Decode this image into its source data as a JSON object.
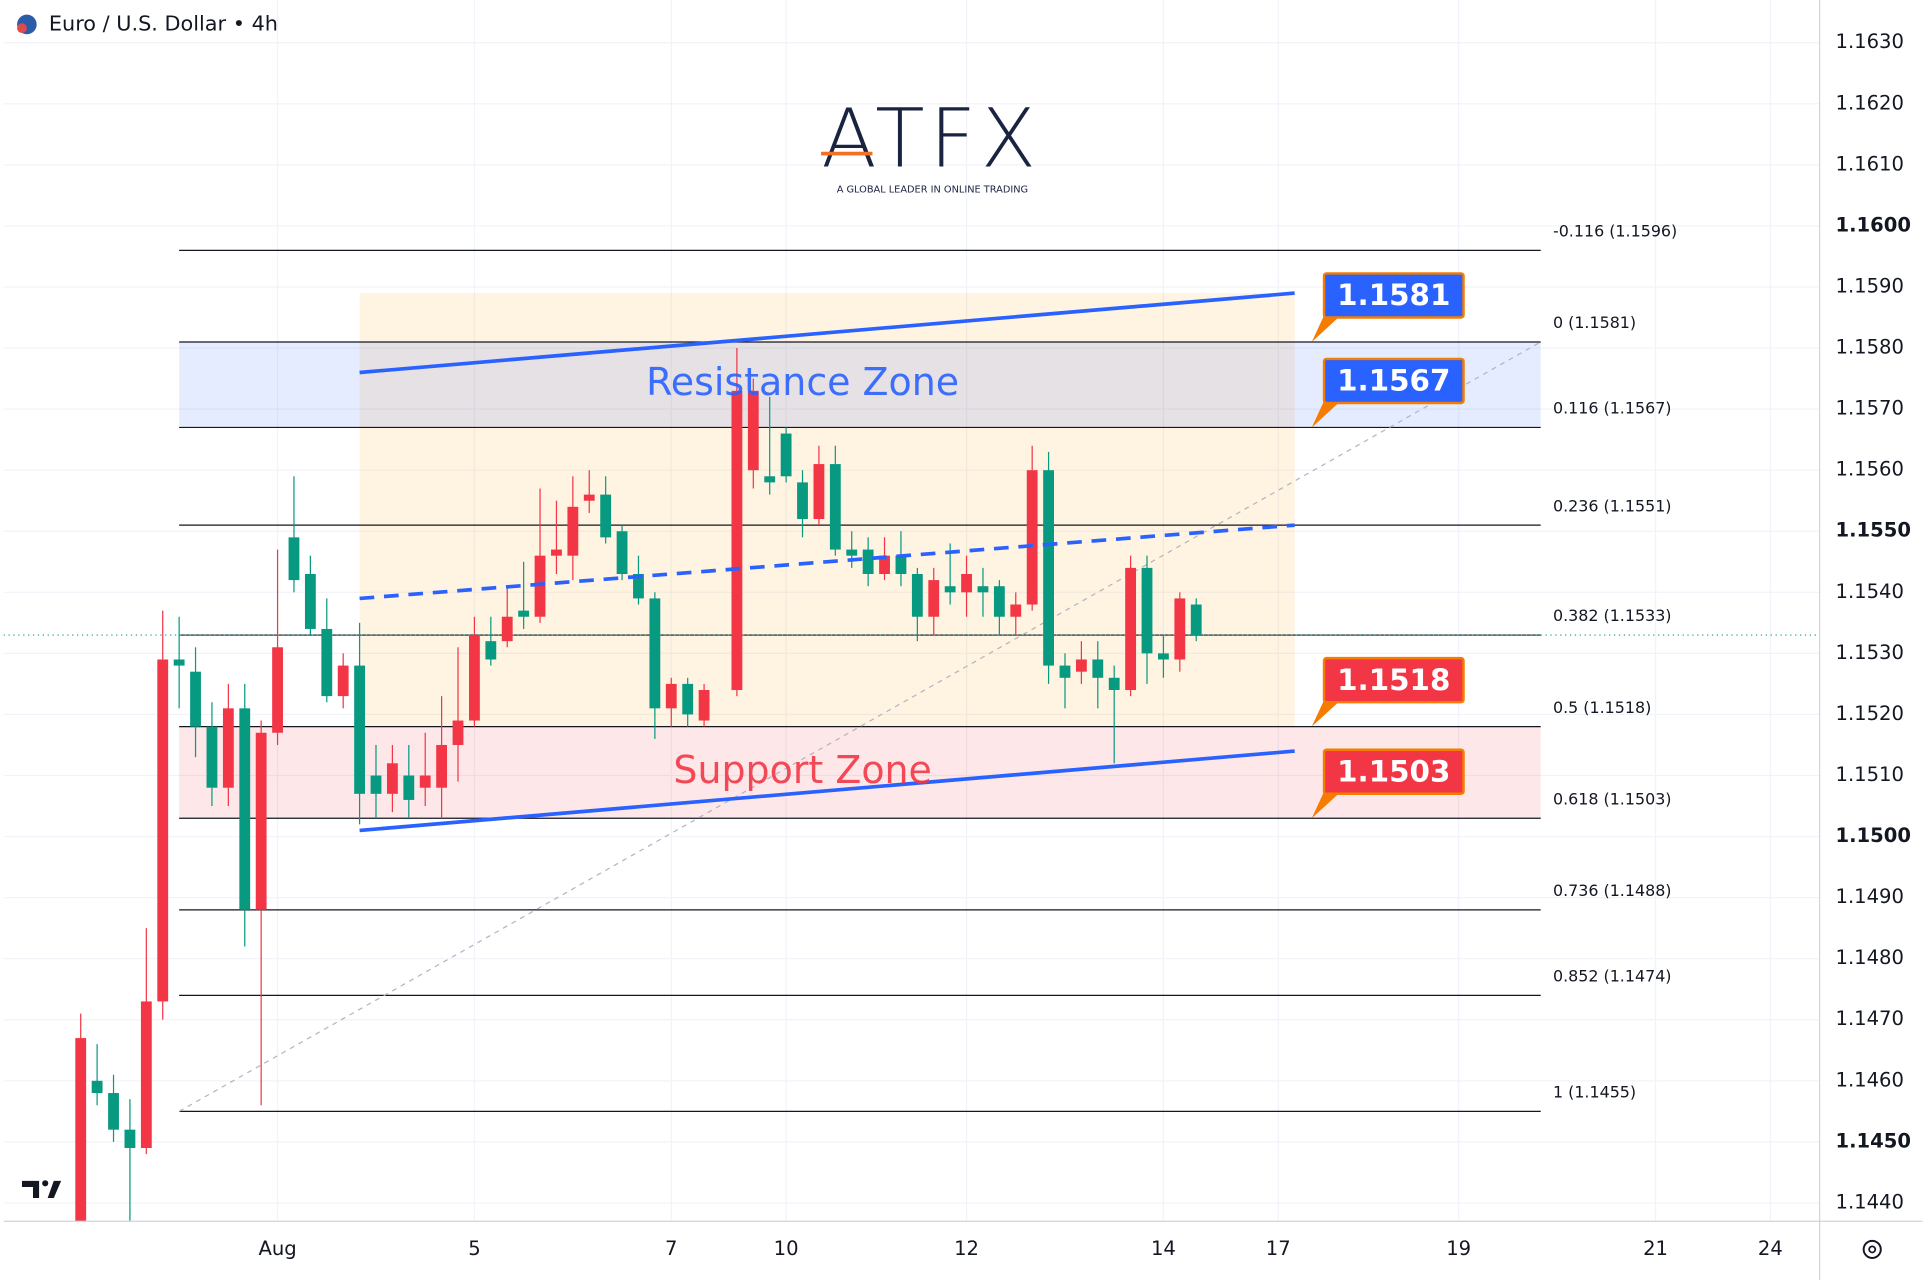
{
  "chart_data": {
    "type": "candlestick",
    "title": "Euro / U.S. Dollar • 4h",
    "logo": {
      "name": "ATFX",
      "tagline": "A GLOBAL LEADER IN ONLINE TRADING"
    },
    "up_color": "#f23645",
    "down_color": "#089981",
    "xlim": [
      -4.7,
      106
    ],
    "ylim": [
      1.1437,
      1.1637
    ],
    "grid": true,
    "xticks": [
      {
        "value": 12,
        "label": "Aug"
      },
      {
        "value": 24,
        "label": "5"
      },
      {
        "value": 36,
        "label": "7"
      },
      {
        "value": 43,
        "label": "10"
      },
      {
        "value": 54,
        "label": "12"
      },
      {
        "value": 66,
        "label": "14"
      },
      {
        "value": 73,
        "label": "17"
      },
      {
        "value": 84,
        "label": "19"
      },
      {
        "value": 96,
        "label": "21"
      },
      {
        "value": 103,
        "label": "24"
      }
    ],
    "yticks": [
      {
        "value": 1.144,
        "label": "1.1440"
      },
      {
        "value": 1.145,
        "label": "1.1450"
      },
      {
        "value": 1.146,
        "label": "1.1460"
      },
      {
        "value": 1.147,
        "label": "1.1470"
      },
      {
        "value": 1.148,
        "label": "1.1480"
      },
      {
        "value": 1.149,
        "label": "1.1490"
      },
      {
        "value": 1.15,
        "label": "1.1500"
      },
      {
        "value": 1.151,
        "label": "1.1510"
      },
      {
        "value": 1.152,
        "label": "1.1520"
      },
      {
        "value": 1.153,
        "label": "1.1530"
      },
      {
        "value": 1.154,
        "label": "1.1540"
      },
      {
        "value": 1.155,
        "label": "1.1550"
      },
      {
        "value": 1.156,
        "label": "1.1560"
      },
      {
        "value": 1.157,
        "label": "1.1570"
      },
      {
        "value": 1.158,
        "label": "1.1580"
      },
      {
        "value": 1.159,
        "label": "1.1590"
      },
      {
        "value": 1.16,
        "label": "1.1600"
      },
      {
        "value": 1.161,
        "label": "1.1610"
      },
      {
        "value": 1.162,
        "label": "1.1620"
      },
      {
        "value": 1.163,
        "label": "1.1630"
      }
    ],
    "x": [
      0,
      1,
      2,
      3,
      4,
      5,
      6,
      7,
      8,
      9,
      10,
      11,
      12,
      13,
      14,
      15,
      16,
      17,
      18,
      19,
      20,
      21,
      22,
      23,
      24,
      25,
      26,
      27,
      28,
      29,
      30,
      31,
      32,
      33,
      34,
      35,
      36,
      37,
      38,
      40,
      41,
      42,
      43,
      44,
      45,
      46,
      47,
      48,
      49,
      50,
      51,
      52,
      53,
      54,
      55,
      56,
      57,
      58,
      59,
      60,
      61,
      62,
      63,
      64,
      65,
      66,
      67,
      68
    ],
    "open": [
      1.143,
      1.146,
      1.1458,
      1.1452,
      1.1449,
      1.1473,
      1.1529,
      1.1527,
      1.1518,
      1.1508,
      1.1521,
      1.1488,
      1.1517,
      1.1549,
      1.1543,
      1.1534,
      1.1523,
      1.1528,
      1.151,
      1.1507,
      1.151,
      1.1508,
      1.1508,
      1.1515,
      1.1519,
      1.1532,
      1.1532,
      1.1537,
      1.1536,
      1.1546,
      1.1546,
      1.1555,
      1.1556,
      1.155,
      1.1543,
      1.1539,
      1.1521,
      1.1525,
      1.1519,
      1.1524,
      1.156,
      1.1559,
      1.1566,
      1.1558,
      1.1552,
      1.1561,
      1.1547,
      1.1547,
      1.1543,
      1.1546,
      1.1543,
      1.1536,
      1.1541,
      1.154,
      1.1541,
      1.1541,
      1.1536,
      1.1538,
      1.156,
      1.1528,
      1.1527,
      1.1529,
      1.1526,
      1.1524,
      1.1544,
      1.153,
      1.1529,
      1.1538
    ],
    "high": [
      1.1471,
      1.1466,
      1.1461,
      1.1457,
      1.1485,
      1.1537,
      1.1536,
      1.1531,
      1.1522,
      1.1525,
      1.1525,
      1.1519,
      1.1547,
      1.1559,
      1.1546,
      1.1539,
      1.153,
      1.1535,
      1.1515,
      1.1515,
      1.1515,
      1.1517,
      1.1523,
      1.1531,
      1.1536,
      1.1536,
      1.1541,
      1.1545,
      1.1557,
      1.1555,
      1.1559,
      1.156,
      1.1559,
      1.1551,
      1.1546,
      1.154,
      1.1526,
      1.1526,
      1.1525,
      1.158,
      1.1575,
      1.1572,
      1.1567,
      1.156,
      1.1564,
      1.1564,
      1.155,
      1.1549,
      1.1549,
      1.155,
      1.1544,
      1.1544,
      1.1548,
      1.1546,
      1.1544,
      1.1542,
      1.154,
      1.1564,
      1.1563,
      1.153,
      1.1532,
      1.1532,
      1.1528,
      1.1546,
      1.1546,
      1.1533,
      1.154,
      1.1539
    ],
    "low": [
      1.1425,
      1.1456,
      1.145,
      1.1437,
      1.1448,
      1.147,
      1.1521,
      1.1513,
      1.1505,
      1.1505,
      1.1482,
      1.1456,
      1.1515,
      1.154,
      1.1533,
      1.1522,
      1.1521,
      1.1502,
      1.1503,
      1.1504,
      1.1503,
      1.1505,
      1.1503,
      1.1509,
      1.1518,
      1.1528,
      1.1531,
      1.1534,
      1.1535,
      1.1543,
      1.1542,
      1.1553,
      1.1548,
      1.1542,
      1.1538,
      1.1516,
      1.1518,
      1.1518,
      1.1518,
      1.1523,
      1.1557,
      1.1556,
      1.1558,
      1.1549,
      1.1551,
      1.1546,
      1.1544,
      1.1541,
      1.1542,
      1.1541,
      1.1532,
      1.1533,
      1.1538,
      1.1536,
      1.1536,
      1.1533,
      1.1533,
      1.1537,
      1.1525,
      1.1521,
      1.1525,
      1.1521,
      1.1512,
      1.1523,
      1.1525,
      1.1526,
      1.1527,
      1.1532
    ],
    "close": [
      1.1467,
      1.1458,
      1.1452,
      1.1449,
      1.1473,
      1.1529,
      1.1528,
      1.1518,
      1.1508,
      1.1521,
      1.1488,
      1.1517,
      1.1531,
      1.1542,
      1.1534,
      1.1523,
      1.1528,
      1.1507,
      1.1507,
      1.1512,
      1.1506,
      1.151,
      1.1515,
      1.1519,
      1.1533,
      1.1529,
      1.1536,
      1.1536,
      1.1546,
      1.1547,
      1.1554,
      1.1556,
      1.1549,
      1.1543,
      1.1539,
      1.1521,
      1.1525,
      1.152,
      1.1524,
      1.1573,
      1.1573,
      1.1558,
      1.1559,
      1.1552,
      1.1561,
      1.1547,
      1.1546,
      1.1543,
      1.1546,
      1.1543,
      1.1536,
      1.1542,
      1.154,
      1.1543,
      1.154,
      1.1536,
      1.1538,
      1.156,
      1.1528,
      1.1526,
      1.1529,
      1.1526,
      1.1524,
      1.1544,
      1.153,
      1.1529,
      1.1539,
      1.1533
    ],
    "last_price": 1.1533,
    "fib_x": [
      6,
      89
    ],
    "fib_levels": [
      {
        "value": 1.1596,
        "label": "-0.116 (1.1596)"
      },
      {
        "value": 1.1581,
        "label": "0 (1.1581)"
      },
      {
        "value": 1.1567,
        "label": "0.116 (1.1567)"
      },
      {
        "value": 1.1551,
        "label": "0.236 (1.1551)"
      },
      {
        "value": 1.1533,
        "label": "0.382 (1.1533)"
      },
      {
        "value": 1.1518,
        "label": "0.5 (1.1518)"
      },
      {
        "value": 1.1503,
        "label": "0.618 (1.1503)"
      },
      {
        "value": 1.1488,
        "label": "0.736 (1.1488)"
      },
      {
        "value": 1.1474,
        "label": "0.852 (1.1474)"
      },
      {
        "value": 1.1455,
        "label": "1 (1.1455)"
      }
    ],
    "fib_diagonal": {
      "x": [
        6,
        89
      ],
      "y": [
        1.1455,
        1.1581
      ]
    },
    "zones": [
      {
        "name": "Resistance Zone",
        "range": [
          1.1567,
          1.1581
        ],
        "color": "#2962ff"
      },
      {
        "name": "Support Zone",
        "range": [
          1.1503,
          1.1518
        ],
        "color": "#f23645"
      }
    ],
    "range_box": {
      "x": [
        17,
        74
      ],
      "y": [
        1.1518,
        1.1589
      ]
    },
    "trendlines": [
      {
        "x": [
          17,
          74
        ],
        "y": [
          1.1576,
          1.1589
        ],
        "dashed": false
      },
      {
        "x": [
          17,
          74
        ],
        "y": [
          1.1539,
          1.1551
        ],
        "dashed": true
      },
      {
        "x": [
          17,
          74
        ],
        "y": [
          1.1501,
          1.1514
        ],
        "dashed": false
      }
    ],
    "price_labels": {
      "values": [
        1.1581,
        1.1567,
        1.1518,
        1.1503
      ],
      "colors": [
        "#2962ff",
        "#2962ff",
        "#f23645",
        "#f23645"
      ]
    }
  }
}
